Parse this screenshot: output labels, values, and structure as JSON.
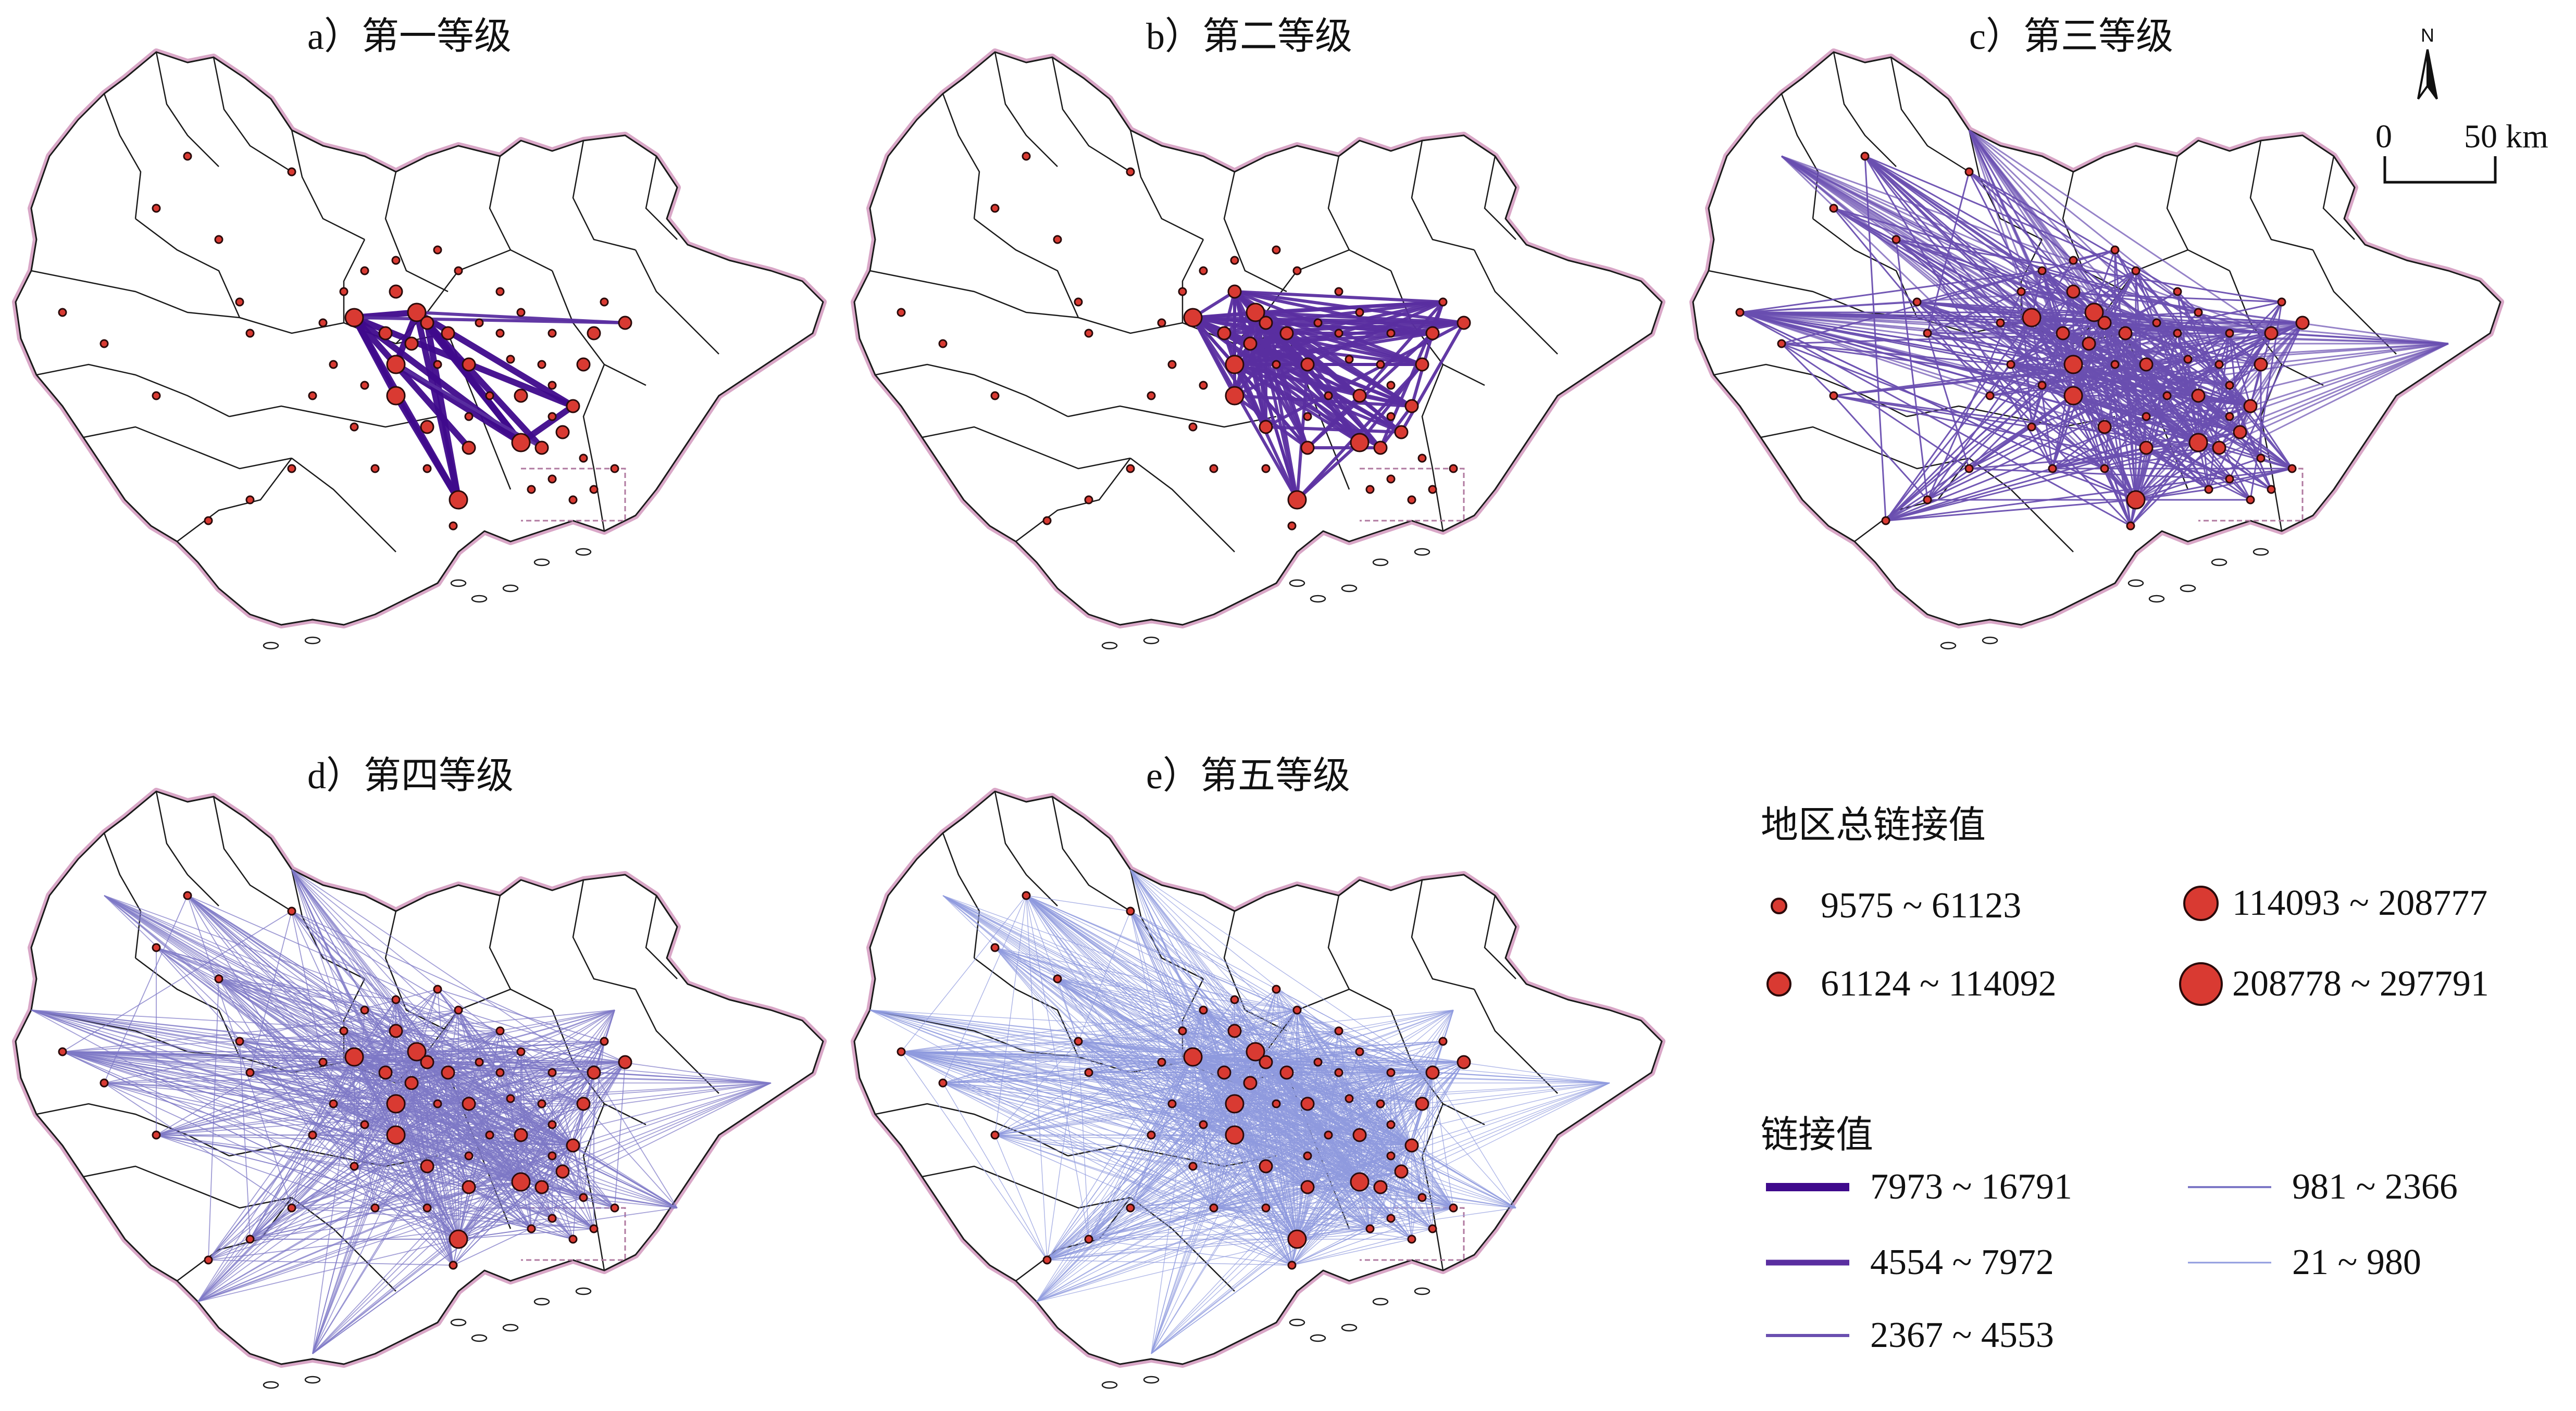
{
  "panels": [
    {
      "key": "a",
      "title": "a）第一等级"
    },
    {
      "key": "b",
      "title": "b）第二等级"
    },
    {
      "key": "c",
      "title": "c）第三等级"
    },
    {
      "key": "d",
      "title": "d）第四等级"
    },
    {
      "key": "e",
      "title": "e）第五等级"
    }
  ],
  "north_label": "N",
  "scale": {
    "zero": "0",
    "distance": "50 km"
  },
  "node_legend": {
    "title": "地区总链接值",
    "items": [
      {
        "label": "9575 ~ 61123",
        "class": 1
      },
      {
        "label": "61124 ~ 114092",
        "class": 2
      },
      {
        "label": "114093 ~ 208777",
        "class": 3
      },
      {
        "label": "208778 ~ 297791",
        "class": 4
      }
    ]
  },
  "link_legend": {
    "title": "链接值",
    "items": [
      {
        "label": "7973 ~ 16791",
        "class": 1
      },
      {
        "label": "4554 ~ 7972",
        "class": 2
      },
      {
        "label": "2367 ~ 4553",
        "class": 3
      },
      {
        "label": "981 ~ 2366",
        "class": 4
      },
      {
        "label": "21 ~ 980",
        "class": 5
      }
    ]
  },
  "colors": {
    "node_fill": "#d93a32",
    "node_stroke": "#2a0a0a",
    "link_1": "#3f0a8c",
    "link_2": "#5a2ea0",
    "link_3": "#6a4fb0",
    "link_4": "#7d78c6",
    "link_5": "#8f9ade",
    "boundary": "#1a1a1a",
    "outer_halo": "#d9a7c7",
    "inset_box": "#b07aa0"
  }
}
